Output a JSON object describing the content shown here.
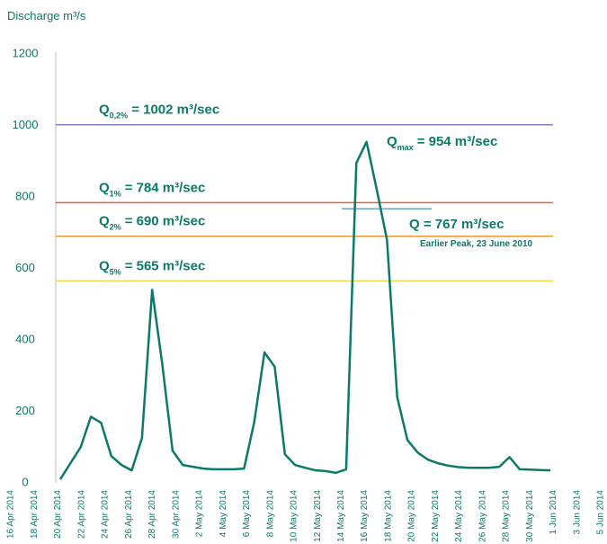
{
  "chart_data": {
    "type": "line",
    "y_axis_label": "Discharge m³/s",
    "ylim": [
      0,
      1200
    ],
    "yticks": [
      0,
      200,
      400,
      600,
      800,
      1000,
      1200
    ],
    "x_labels": [
      "16 Apr 2014",
      "18 Apr 2014",
      "20 Apr 2014",
      "22 Apr 2014",
      "24 Apr 2014",
      "26 Apr 2014",
      "28 Apr 2014",
      "30 Apr 2014",
      "2 May 2014",
      "4 May 2014",
      "6 May 2014",
      "8 May 2014",
      "10 May 2014",
      "12 May 2014",
      "14 May 2014",
      "16 May 2014",
      "18 May 2014",
      "20 May 2014",
      "22 May 2014",
      "24 May 2014",
      "26 May 2014",
      "28 May 2014",
      "30 May 2014",
      "1 Jun 2014",
      "3 Jun 2014",
      "5 Jun 2014"
    ],
    "series": [
      {
        "color": "#0b7a68",
        "values": [
          10,
          55,
          100,
          185,
          168,
          75,
          50,
          35,
          125,
          540,
          330,
          90,
          50,
          45,
          40,
          38,
          38,
          38,
          40,
          170,
          365,
          325,
          80,
          50,
          42,
          35,
          33,
          28,
          38,
          895,
          954,
          820,
          680,
          240,
          120,
          85,
          65,
          55,
          48,
          44,
          42,
          42,
          42,
          45,
          72,
          38,
          37,
          36,
          35
        ]
      }
    ],
    "reference_lines": [
      {
        "symbol": "Q",
        "sub": "0,2%",
        "text": "= 1002 m³/sec",
        "value": 1002,
        "color": "#8a7fc0"
      },
      {
        "symbol": "Q",
        "sub": "1%",
        "text": "= 784 m³/sec",
        "value": 784,
        "color": "#e2623e"
      },
      {
        "symbol": "Q",
        "sub": "2%",
        "text": "= 690 m³/sec",
        "value": 690,
        "color": "#f09a35"
      },
      {
        "symbol": "Q",
        "sub": "5%",
        "text": "= 565 m³/sec",
        "value": 565,
        "color": "#f2d64b"
      }
    ],
    "max_annotation": {
      "symbol": "Q",
      "sub": "max",
      "text": "= 954 m³/sec"
    },
    "earlier_peak": {
      "text": "Q = 767 m³/sec",
      "note": "Earlier Peak, 23 June 2010",
      "value": 767,
      "color": "#4a90d0"
    }
  }
}
